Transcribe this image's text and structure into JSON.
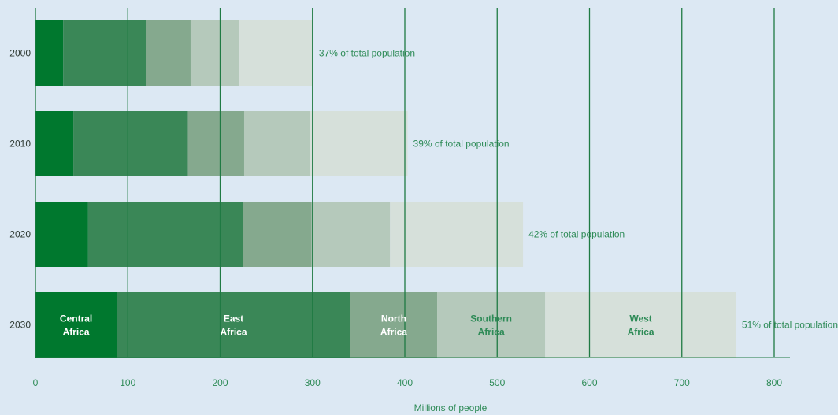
{
  "chart_data": {
    "type": "bar",
    "orientation": "horizontal",
    "stacked": true,
    "categories": [
      "2000",
      "2010",
      "2020",
      "2030"
    ],
    "series": [
      {
        "name": "Central\nAfrica",
        "color": "#00782e",
        "text_color": "#ffffff",
        "values": [
          30,
          41,
          57,
          88
        ]
      },
      {
        "name": "East\nAfrica",
        "color": "#3a8757",
        "text_color": "#ffffff",
        "values": [
          90,
          124,
          168,
          253
        ]
      },
      {
        "name": "North\nAfrica",
        "color": "#85a98e",
        "text_color": "#ffffff",
        "values": [
          48,
          61,
          74,
          94
        ]
      },
      {
        "name": "Southern\nAfrica",
        "color": "#b5c9bb",
        "text_color": "#2e8b57",
        "values": [
          53,
          71,
          85,
          117
        ]
      },
      {
        "name": "West\nAfrica",
        "color": "#d6e0da",
        "text_color": "#2e8b57",
        "values": [
          80,
          106,
          144,
          207
        ]
      }
    ],
    "annotations": [
      "37% of total population",
      "39% of total population",
      "42% of total population",
      "51% of total population"
    ],
    "xlabel": "Millions of people",
    "ylabel": "",
    "xlim": [
      0,
      800
    ],
    "xticks": [
      0,
      100,
      200,
      300,
      400,
      500,
      600,
      700,
      800
    ],
    "grid": "vertical",
    "colors": {
      "background": "#dce8f3",
      "grid": "#1f7a43",
      "axis_text": "#2e8b57"
    }
  }
}
